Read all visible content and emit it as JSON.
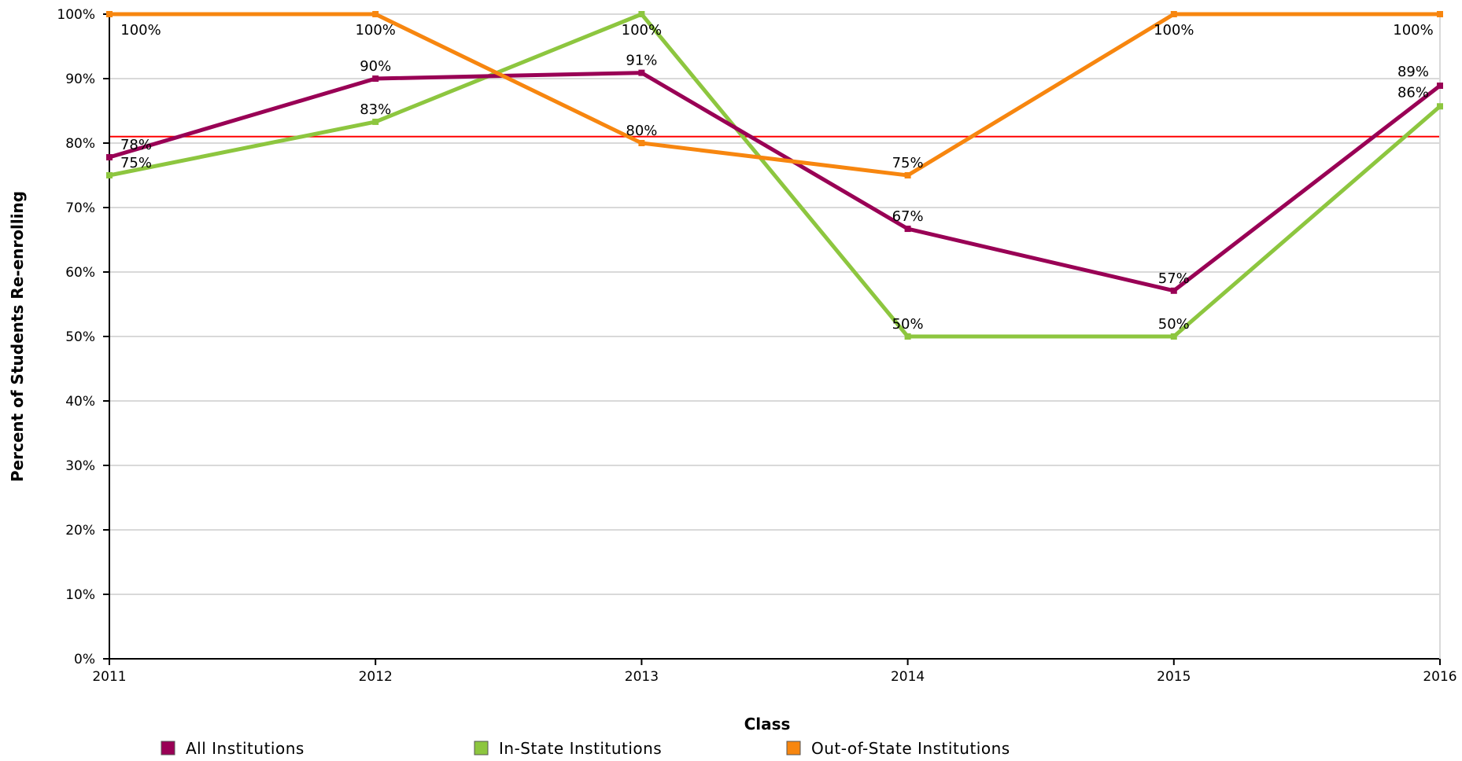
{
  "chart_data": {
    "type": "line",
    "xlabel": "Class",
    "ylabel": "Percent of Students Re-enrolling",
    "x": [
      "2011",
      "2012",
      "2013",
      "2014",
      "2015",
      "2016"
    ],
    "ylim": [
      0,
      100
    ],
    "yticks": [
      "0%",
      "10%",
      "20%",
      "30%",
      "40%",
      "50%",
      "60%",
      "70%",
      "80%",
      "90%",
      "100%"
    ],
    "grid": true,
    "legend_position": "bottom",
    "reference_line": {
      "value": 81,
      "color": "#ff0000"
    },
    "series": [
      {
        "name": "All Institutions",
        "color": "#990055",
        "values": [
          77.8,
          90,
          90.9,
          66.7,
          57.1,
          88.9
        ],
        "labels": [
          "78%",
          "90%",
          "91%",
          "67%",
          "57%",
          "89%"
        ]
      },
      {
        "name": "In-State Institutions",
        "color": "#8dc63f",
        "values": [
          75,
          83.3,
          100,
          50,
          50,
          85.7
        ],
        "labels": [
          "75%",
          "83%",
          "100%",
          "50%",
          "50%",
          "86%"
        ]
      },
      {
        "name": "Out-of-State Institutions",
        "color": "#f7860f",
        "values": [
          100,
          100,
          80,
          75,
          100,
          100
        ],
        "labels": [
          "100%",
          "100%",
          "80%",
          "75%",
          "100%",
          "100%"
        ]
      }
    ]
  }
}
